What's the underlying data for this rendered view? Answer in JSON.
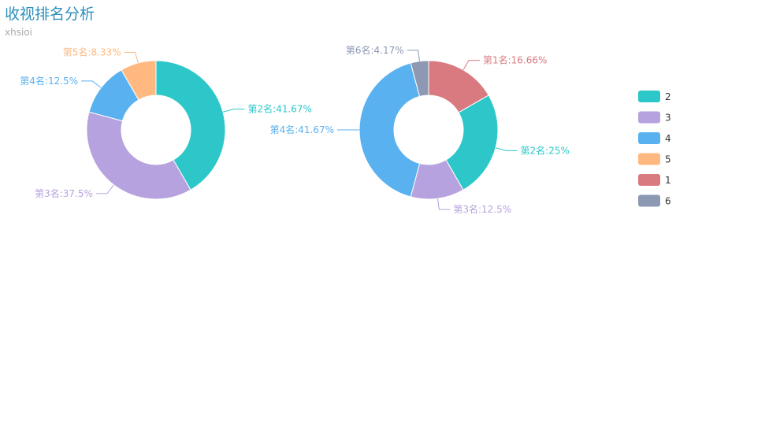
{
  "chart_data": {
    "type": "pie",
    "variant": "donut",
    "title": "收视排名分析",
    "subtitle": "xhsioi",
    "legend": {
      "position": "right",
      "items": [
        {
          "name": "2",
          "color": "#2ec7c9"
        },
        {
          "name": "3",
          "color": "#b6a2de"
        },
        {
          "name": "4",
          "color": "#5ab1ef"
        },
        {
          "name": "5",
          "color": "#ffb980"
        },
        {
          "name": "1",
          "color": "#d87a80"
        },
        {
          "name": "6",
          "color": "#8d98b3"
        }
      ]
    },
    "pies": [
      {
        "slices": [
          {
            "name": "2",
            "label": "第2名:41.67%",
            "value": 41.67,
            "color": "#2ec7c9"
          },
          {
            "name": "3",
            "label": "第3名:37.5%",
            "value": 37.5,
            "color": "#b6a2de"
          },
          {
            "name": "4",
            "label": "第4名:12.5%",
            "value": 12.5,
            "color": "#5ab1ef"
          },
          {
            "name": "5",
            "label": "第5名:8.33%",
            "value": 8.33,
            "color": "#ffb980"
          }
        ]
      },
      {
        "slices": [
          {
            "name": "1",
            "label": "第1名:16.66%",
            "value": 16.66,
            "color": "#d87a80"
          },
          {
            "name": "2",
            "label": "第2名:25%",
            "value": 25,
            "color": "#2ec7c9"
          },
          {
            "name": "3",
            "label": "第3名:12.5%",
            "value": 12.5,
            "color": "#b6a2de"
          },
          {
            "name": "4",
            "label": "第4名:41.67%",
            "value": 41.67,
            "color": "#5ab1ef"
          },
          {
            "name": "6",
            "label": "第6名:4.17%",
            "value": 4.17,
            "color": "#8d98b3"
          }
        ]
      }
    ]
  }
}
